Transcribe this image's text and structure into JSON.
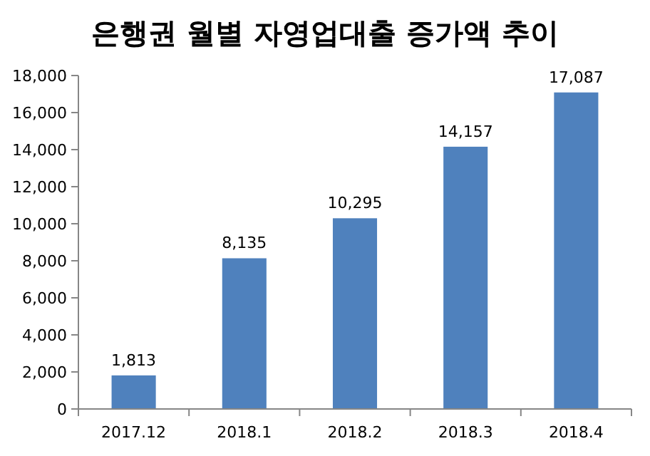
{
  "chart_data": {
    "type": "bar",
    "title": "은행권 월별 자영업대출 증가액 추이",
    "categories": [
      "2017.12",
      "2018.1",
      "2018.2",
      "2018.3",
      "2018.4"
    ],
    "values": [
      1813,
      8135,
      10295,
      14157,
      17087
    ],
    "value_labels": [
      "1,813",
      "8,135",
      "10,295",
      "14,157",
      "17,087"
    ],
    "color": "#4f81bd",
    "ylim": [
      0,
      18000
    ],
    "yticks": [
      0,
      {
        "value": 2000,
        "label": "2,000"
      },
      {
        "value": 4000,
        "label": "4,000"
      },
      {
        "value": 6000,
        "label": "6,000"
      },
      {
        "value": 8000,
        "label": "8,000"
      },
      {
        "value": 10000,
        "label": "10,000"
      },
      {
        "value": 12000,
        "label": "12,000"
      },
      {
        "value": 14000,
        "label": "14,000"
      },
      {
        "value": 16000,
        "label": "16,000"
      },
      {
        "value": 18000,
        "label": "18,000"
      }
    ],
    "grid": false
  }
}
